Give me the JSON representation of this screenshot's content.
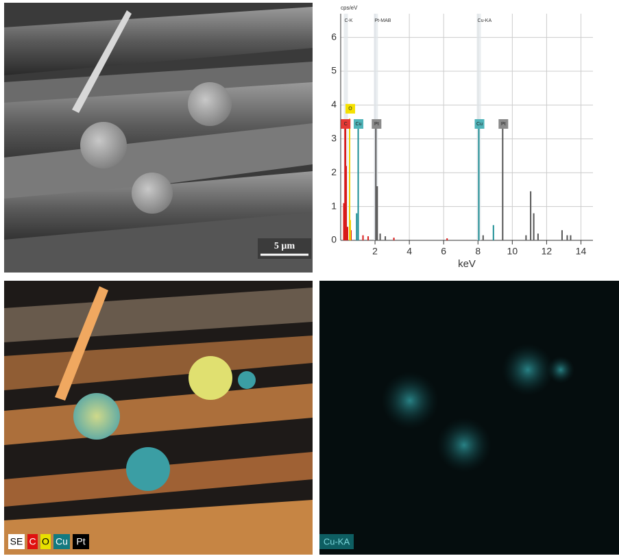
{
  "chart_data": {
    "type": "stem",
    "y_label": "cps/eV",
    "x_label": "keV",
    "xlim": [
      0,
      14.7
    ],
    "ylim": [
      0,
      6.7
    ],
    "xticks": [
      2,
      4,
      6,
      8,
      10,
      12,
      14
    ],
    "yticks": [
      0,
      1,
      2,
      3,
      4,
      5,
      6
    ],
    "grid": true,
    "series": [
      {
        "color": "#d81b1b",
        "x": [
          0.18,
          0.25,
          0.28,
          0.32,
          0.4,
          0.6,
          1.3,
          1.6,
          3.1,
          6.2
        ],
        "values": [
          1.1,
          3.4,
          3.5,
          2.2,
          0.4,
          0.3,
          0.15,
          0.12,
          0.08,
          0.06
        ]
      },
      {
        "color": "#f0d000",
        "x": [
          0.52,
          0.56
        ],
        "values": [
          3.6,
          0.6
        ]
      },
      {
        "color": "#1f8f96",
        "x": [
          0.93,
          1.02,
          8.05,
          8.9
        ],
        "values": [
          0.8,
          3.4,
          3.4,
          0.45
        ]
      },
      {
        "color": "#555555",
        "x": [
          2.05,
          2.13,
          2.3,
          2.6,
          9.44,
          8.3,
          10.8,
          11.07,
          11.25,
          11.5,
          12.9,
          13.2,
          13.4
        ],
        "values": [
          3.4,
          1.6,
          0.2,
          0.12,
          3.4,
          0.15,
          0.15,
          1.45,
          0.8,
          0.2,
          0.3,
          0.15,
          0.15
        ]
      }
    ],
    "line_labels": [
      {
        "text": "C-K",
        "x": 0.3
      },
      {
        "text": "Pt-MAB",
        "x": 2.05
      },
      {
        "text": "Cu-KA",
        "x": 8.05
      }
    ],
    "peak_labels": [
      {
        "text": "C",
        "x": 0.25,
        "y": 3.4,
        "color": "#e53935"
      },
      {
        "text": "O",
        "x": 0.52,
        "y": 3.85,
        "color": "#f5e100"
      },
      {
        "text": "Cu",
        "x": 1.0,
        "y": 3.4,
        "color": "#4fb3b8"
      },
      {
        "text": "Pt",
        "x": 2.05,
        "y": 3.4,
        "color": "#8a8a8a"
      },
      {
        "text": "Cu",
        "x": 8.05,
        "y": 3.4,
        "color": "#4fb3b8"
      },
      {
        "text": "Pt",
        "x": 9.44,
        "y": 3.4,
        "color": "#8a8a8a"
      }
    ]
  },
  "sem_panel": {
    "scale_bar": "5 µm"
  },
  "overlay_panel": {
    "legend": [
      {
        "text": "SE",
        "color": "#ffffff",
        "fg": "#000000"
      },
      {
        "text": "C",
        "color": "#e01010",
        "fg": "#ffffff"
      },
      {
        "text": "O",
        "color": "#e8e000",
        "fg": "#000000"
      },
      {
        "text": "Cu",
        "color": "#137a80",
        "fg": "#ffffff"
      },
      {
        "text": "Pt",
        "color": "#000000",
        "fg": "#ffffff"
      }
    ]
  },
  "cu_panel": {
    "label": "Cu-KA"
  }
}
